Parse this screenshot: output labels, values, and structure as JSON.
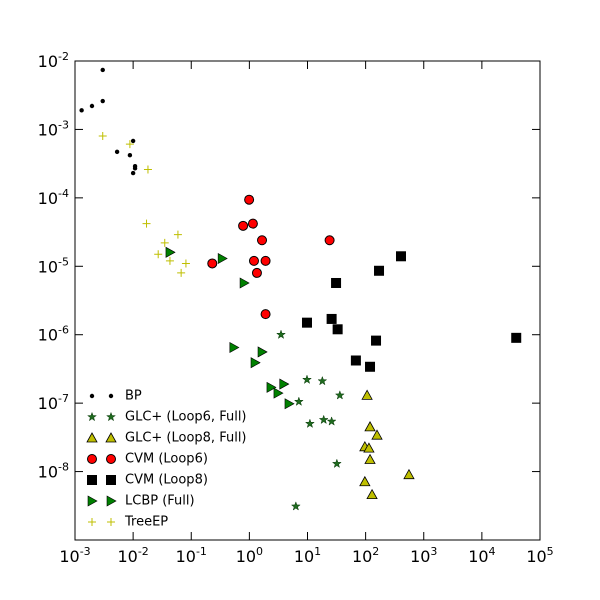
{
  "chart_data": {
    "type": "scatter",
    "log_x": true,
    "log_y": true,
    "legend": "lower left",
    "xlim": [
      0.001,
      100000
    ],
    "ylim": [
      1e-09,
      0.01
    ],
    "xticks": [
      {
        "value": 0.001,
        "label": "10^-3"
      },
      {
        "value": 0.01,
        "label": "10^-2"
      },
      {
        "value": 0.1,
        "label": "10^-1"
      },
      {
        "value": 1,
        "label": "10^0"
      },
      {
        "value": 10,
        "label": "10^1"
      },
      {
        "value": 100,
        "label": "10^2"
      },
      {
        "value": 1000,
        "label": "10^3"
      },
      {
        "value": 10000,
        "label": "10^4"
      },
      {
        "value": 100000,
        "label": "10^5"
      }
    ],
    "yticks": [
      {
        "value": 1e-08,
        "label": "10^-8"
      },
      {
        "value": 1e-07,
        "label": "10^-7"
      },
      {
        "value": 1e-06,
        "label": "10^-6"
      },
      {
        "value": 1e-05,
        "label": "10^-5"
      },
      {
        "value": 0.0001,
        "label": "10^-4"
      },
      {
        "value": 0.001,
        "label": "10^-3"
      },
      {
        "value": 0.01,
        "label": "10^-2"
      }
    ],
    "series": [
      {
        "name": "BP",
        "marker": "dot",
        "color": "#000000",
        "x": [
          0.0013,
          0.00196,
          0.003,
          0.003,
          0.0053,
          0.0088,
          0.01,
          0.0108,
          0.0108,
          0.01
        ],
        "y": [
          0.0019,
          0.0022,
          0.0074,
          0.0026,
          0.00047,
          0.00042,
          0.00068,
          0.00029,
          0.00027,
          0.00023
        ]
      },
      {
        "name": "GLC+ (Loop6, Full)",
        "marker": "star",
        "color": "#1f6b1f",
        "x": [
          3.5,
          9.8,
          18,
          7.1,
          11,
          19,
          26,
          36,
          32,
          6.3
        ],
        "y": [
          1e-06,
          2.2e-07,
          2.1e-07,
          1.05e-07,
          5e-08,
          5.7e-08,
          5.4e-08,
          1.3e-07,
          1.3e-08,
          3.1e-09
        ]
      },
      {
        "name": "GLC+ (Loop8, Full)",
        "marker": "triangle-up",
        "color": "#bfbf00",
        "x": [
          106,
          119,
          157,
          97,
          114,
          119,
          97,
          129,
          557
        ],
        "y": [
          1.3e-07,
          4.5e-08,
          3.4e-08,
          2.3e-08,
          2.2e-08,
          1.5e-08,
          7.1e-09,
          4.6e-09,
          9e-09
        ]
      },
      {
        "name": "CVM (Loop6)",
        "marker": "circle",
        "color": "#ff0000",
        "x": [
          0.99,
          0.78,
          1.15,
          1.65,
          0.23,
          1.2,
          1.9,
          1.35,
          24,
          1.9
        ],
        "y": [
          9.4e-05,
          3.9e-05,
          4.2e-05,
          2.4e-05,
          1.1e-05,
          1.2e-05,
          1.2e-05,
          8e-06,
          2.4e-05,
          2e-06
        ]
      },
      {
        "name": "CVM (Loop8)",
        "marker": "square",
        "color": "#000000",
        "x": [
          406,
          170,
          31,
          9.8,
          26,
          33,
          151,
          68,
          119,
          39000
        ],
        "y": [
          1.4e-05,
          8.6e-06,
          5.7e-06,
          1.5e-06,
          1.7e-06,
          1.2e-06,
          8.2e-07,
          4.2e-07,
          3.4e-07,
          9e-07
        ]
      },
      {
        "name": "LCBP (Full)",
        "marker": "triangle-right",
        "color": "#008000",
        "x": [
          0.043,
          0.34,
          0.81,
          0.54,
          1.65,
          1.25,
          2.35,
          3.1,
          3.9,
          4.8
        ],
        "y": [
          1.6e-05,
          1.3e-05,
          5.7e-06,
          6.5e-07,
          5.6e-07,
          3.9e-07,
          1.7e-07,
          1.4e-07,
          1.9e-07,
          9.8e-08
        ]
      },
      {
        "name": "TreeEP",
        "marker": "plus",
        "color": "#bfbf00",
        "x": [
          0.003,
          0.0088,
          0.018,
          0.017,
          0.027,
          0.035,
          0.059,
          0.043,
          0.067,
          0.081
        ],
        "y": [
          0.0008,
          0.00061,
          0.00026,
          4.2e-05,
          1.5e-05,
          2.2e-05,
          2.9e-05,
          1.2e-05,
          8e-06,
          1.1e-05
        ]
      }
    ]
  }
}
